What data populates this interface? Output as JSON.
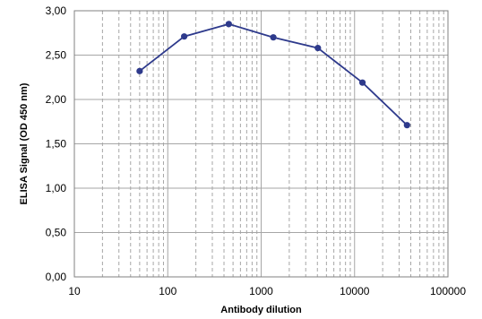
{
  "chart_data": {
    "type": "line",
    "xlabel": "Antibody dilution",
    "ylabel": "ELISA Signal (OD 450 nm)",
    "x_scale": "log",
    "xlim": [
      10,
      100000
    ],
    "ylim": [
      0,
      3
    ],
    "grid": true,
    "x_ticks": [
      10,
      100,
      1000,
      10000,
      100000
    ],
    "x_tick_labels": [
      "10",
      "100",
      "1000",
      "10000",
      "100000"
    ],
    "y_ticks": [
      0,
      0.5,
      1,
      1.5,
      2,
      2.5,
      3
    ],
    "y_tick_labels": [
      "0,00",
      "0,50",
      "1,00",
      "1,50",
      "2,00",
      "2,50",
      "3,00"
    ],
    "series": [
      {
        "x": [
          50,
          150,
          450,
          1350,
          4050,
          12150,
          36450
        ],
        "values": [
          2.32,
          2.71,
          2.85,
          2.7,
          2.58,
          2.19,
          1.71
        ],
        "color": "#2e3a8c"
      }
    ]
  }
}
